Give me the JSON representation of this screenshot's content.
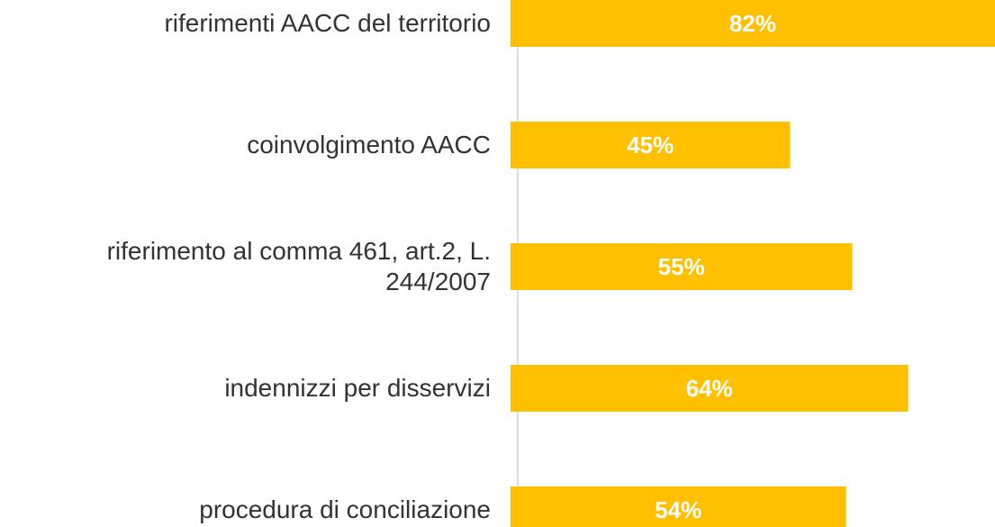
{
  "chart_data": {
    "type": "bar",
    "orientation": "horizontal",
    "categories": [
      "riferimenti AACC del territorio",
      "coinvolgimento AACC",
      "riferimento al comma 461, art.2, L. 244/2007",
      "indennizzi per disservizi",
      "procedura di conciliazione"
    ],
    "values": [
      82,
      45,
      55,
      64,
      54
    ],
    "value_labels": [
      "82%",
      "45%",
      "55%",
      "64%",
      "54%"
    ],
    "color": "#ffc000"
  }
}
